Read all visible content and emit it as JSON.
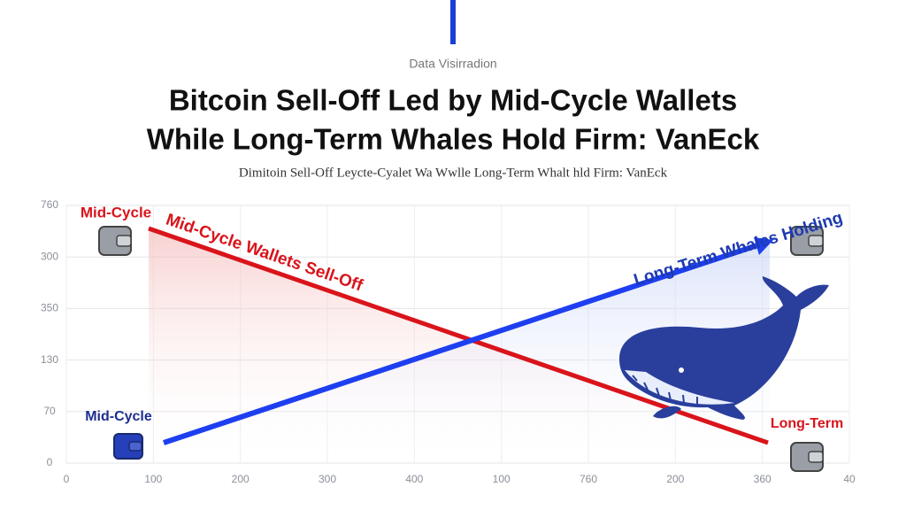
{
  "header": {
    "kicker": "Data Visirradion",
    "title_lines": [
      "Bitcoin Sell-Off Led by Mid-Cycle Wallets",
      "While Long-Term Whales Hold Firm: VanEck"
    ],
    "subtitle": "Dimitoin Sell-Off Leycte-Cyalet Wa Wwlle Long-Term Whalt hld Firm: VanEck"
  },
  "axes": {
    "y_labels": [
      760,
      300,
      350,
      130,
      70,
      0
    ],
    "x_labels": [
      0,
      100,
      200,
      300,
      400,
      100,
      760,
      200,
      360,
      40
    ]
  },
  "labels": {
    "red_start": "Mid-Cycle",
    "red_line": "Mid-Cycle Wallets Sell-Off",
    "blue_line": "Long-Term Whales Holding",
    "blue_start": "Mid-Cycle",
    "red_end": "Long-Term"
  }
}
